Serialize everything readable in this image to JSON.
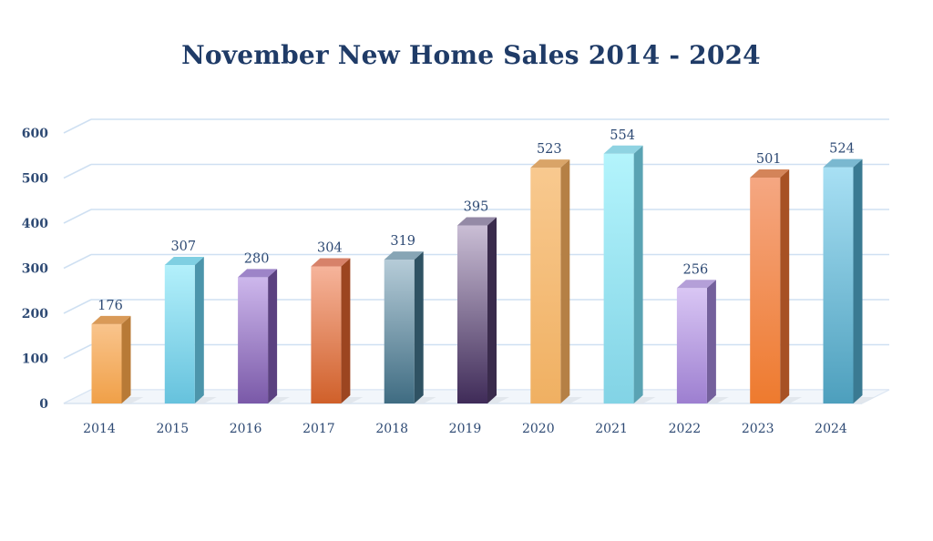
{
  "chart_data": {
    "type": "bar",
    "title": "November New Home Sales 2014 - 2024",
    "xlabel": "",
    "ylabel": "",
    "categories": [
      "2014",
      "2015",
      "2016",
      "2017",
      "2018",
      "2019",
      "2020",
      "2021",
      "2022",
      "2023",
      "2024"
    ],
    "values": [
      176,
      307,
      280,
      304,
      319,
      395,
      523,
      554,
      256,
      501,
      524
    ],
    "ylim": [
      0,
      600
    ],
    "yticks": [
      "0",
      "100",
      "200",
      "300",
      "400",
      "500",
      "600"
    ],
    "grid": true,
    "style": "3d",
    "bar_colors": [
      {
        "top": "#f9c48c",
        "bottom": "#f0a048",
        "side": "#b87a36",
        "cap": "#d99a58"
      },
      {
        "top": "#b3f0fb",
        "bottom": "#66c2dd",
        "side": "#4c95ab",
        "cap": "#7fcfe2"
      },
      {
        "top": "#cdb7ec",
        "bottom": "#7a59a8",
        "side": "#5b4180",
        "cap": "#9d84c8"
      },
      {
        "top": "#f6b49b",
        "bottom": "#d0602a",
        "side": "#9c4520",
        "cap": "#d7826a"
      },
      {
        "top": "#b6ccd8",
        "bottom": "#3f6c82",
        "side": "#2f5263",
        "cap": "#87a5b5"
      },
      {
        "top": "#cabed5",
        "bottom": "#3f2b58",
        "side": "#3a2b4c",
        "cap": "#948aa6"
      },
      {
        "top": "#f8c98f",
        "bottom": "#f0b062",
        "side": "#b58045",
        "cap": "#d9a468"
      },
      {
        "top": "#b3f4fc",
        "bottom": "#82d3e5",
        "side": "#5aa3b3",
        "cap": "#8fd3e2"
      },
      {
        "top": "#d9c6f4",
        "bottom": "#9d7fd0",
        "side": "#74609c",
        "cap": "#b49fd8"
      },
      {
        "top": "#f5a782",
        "bottom": "#ee7a2e",
        "side": "#a75124",
        "cap": "#d48459"
      },
      {
        "top": "#a8e0f4",
        "bottom": "#4d9fbd",
        "side": "#3a7a92",
        "cap": "#7ab8d0"
      }
    ]
  }
}
